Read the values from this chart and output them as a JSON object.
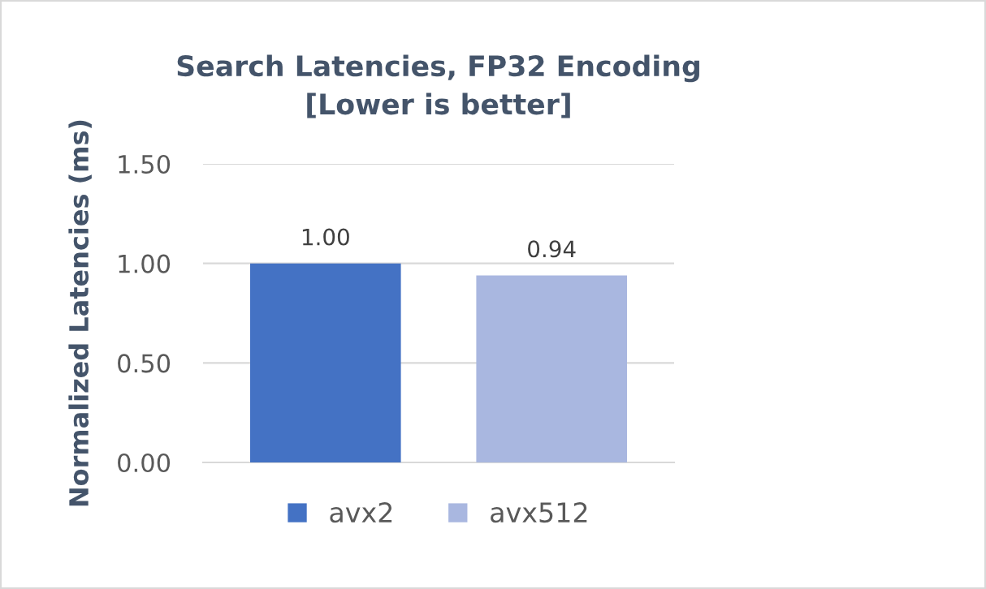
{
  "chart_data": {
    "type": "bar",
    "title": "Search Latencies, FP32 Encoding\n[Lower is better]",
    "ylabel": "Normalized Latencies (ms)",
    "categories": [
      null
    ],
    "series": [
      {
        "name": "avx2",
        "color": "#4472c4",
        "values": [
          1.0
        ],
        "value_labels": [
          "1.00"
        ]
      },
      {
        "name": "avx512",
        "color": "#a9b7e0",
        "values": [
          0.94
        ],
        "value_labels": [
          "0.94"
        ]
      }
    ],
    "ylim": [
      0,
      1.5
    ],
    "yticks": [
      {
        "value": 0,
        "label": "0.00"
      },
      {
        "value": 0.5,
        "label": "0.50"
      },
      {
        "value": 1.0,
        "label": "1.00"
      },
      {
        "value": 1.5,
        "label": "1.50"
      }
    ],
    "grid": "y",
    "legend": "bottom"
  }
}
